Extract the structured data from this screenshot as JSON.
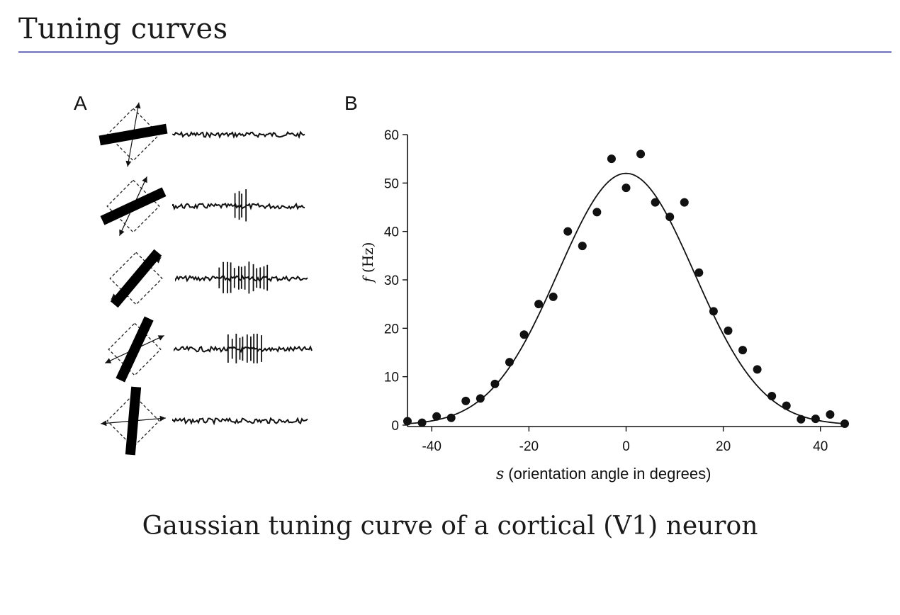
{
  "slide": {
    "title": "Tuning curves",
    "caption": "Gaussian tuning curve of a cortical (V1) neuron",
    "rule_color": "#8c8cc8"
  },
  "panel_a": {
    "label": "A",
    "bar_orientations_deg_from_vertical": [
      80,
      65,
      40,
      25,
      5
    ],
    "spike_counts": [
      0,
      4,
      14,
      10,
      0
    ]
  },
  "chart_data": {
    "type": "scatter",
    "panel_label": "B",
    "xlabel_symbol": "s",
    "xlabel_text": "(orientation angle in degrees)",
    "ylabel_symbol": "f",
    "ylabel_text": "(Hz)",
    "xlim": [
      -45,
      45
    ],
    "ylim": [
      0,
      60
    ],
    "xticks": [
      -40,
      -20,
      0,
      20,
      40
    ],
    "yticks": [
      0,
      10,
      20,
      30,
      40,
      50,
      60
    ],
    "grid": false,
    "series": [
      {
        "kind": "points",
        "x": [
          -45,
          -42,
          -39,
          -36,
          -33,
          -30,
          -27,
          -24,
          -21,
          -18,
          -15,
          -12,
          -9,
          -6,
          -3,
          0,
          3,
          6,
          9,
          12,
          15,
          18,
          21,
          24,
          27,
          30,
          33,
          36,
          39,
          42,
          45
        ],
        "y": [
          0.8,
          0.5,
          1.8,
          1.5,
          5.0,
          5.5,
          8.5,
          13.0,
          18.7,
          25.0,
          26.5,
          40.0,
          37.0,
          44.0,
          55.0,
          49.0,
          56.0,
          46.0,
          43.0,
          46.0,
          31.5,
          23.5,
          19.5,
          15.5,
          11.5,
          6.0,
          4.0,
          1.2,
          1.3,
          2.2,
          0.3
        ]
      },
      {
        "kind": "fit",
        "model": "gaussian",
        "peak_hz": 52,
        "center_deg": 0,
        "sigma_deg": 14
      }
    ]
  }
}
